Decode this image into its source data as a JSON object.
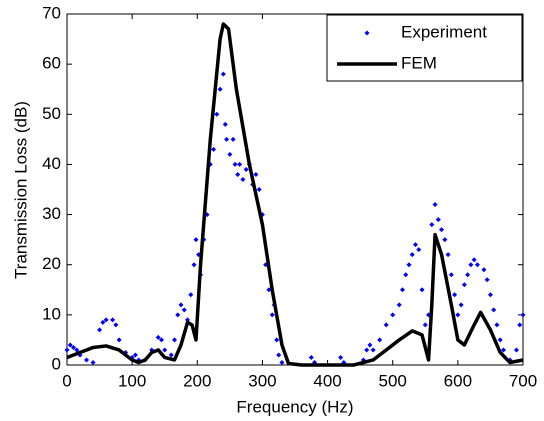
{
  "chart_data": {
    "type": "line",
    "xlabel": "Frequency (Hz)",
    "ylabel": "Transmission Loss (dB)",
    "xlim": [
      0,
      700
    ],
    "ylim": [
      0,
      70
    ],
    "xticks": [
      0,
      100,
      200,
      300,
      400,
      500,
      600,
      700
    ],
    "yticks": [
      0,
      10,
      20,
      30,
      40,
      50,
      60,
      70
    ],
    "legend": "northeast",
    "series": [
      {
        "name": "Experiment",
        "color": "#0000ff",
        "style": "markers",
        "x": [
          0,
          5,
          10,
          15,
          20,
          30,
          40,
          50,
          55,
          60,
          70,
          75,
          80,
          90,
          100,
          105,
          110,
          120,
          130,
          140,
          145,
          150,
          160,
          165,
          170,
          175,
          180,
          185,
          190,
          195,
          198,
          202,
          205,
          210,
          215,
          220,
          225,
          230,
          235,
          240,
          243,
          245,
          250,
          255,
          258,
          262,
          265,
          270,
          275,
          280,
          285,
          290,
          295,
          300,
          305,
          310,
          315,
          318,
          322,
          325,
          330,
          375,
          380,
          420,
          425,
          455,
          460,
          465,
          470,
          480,
          490,
          500,
          510,
          515,
          520,
          525,
          530,
          535,
          540,
          545,
          550,
          555,
          560,
          565,
          570,
          575,
          580,
          585,
          590,
          595,
          600,
          605,
          610,
          615,
          620,
          625,
          630,
          640,
          645,
          650,
          655,
          660,
          665,
          670,
          680,
          690,
          695,
          700
        ],
        "values": [
          3,
          4,
          3.5,
          3,
          2,
          1,
          0.5,
          7,
          8.5,
          9,
          9,
          8,
          5,
          2.5,
          1.5,
          2,
          1,
          1,
          3,
          5.5,
          5,
          3,
          2,
          5,
          10,
          12,
          11,
          9,
          14,
          20,
          25,
          22,
          18,
          25,
          30,
          40,
          43,
          50,
          55,
          58,
          48,
          45,
          42,
          45,
          40,
          38,
          40,
          37,
          39,
          40,
          36,
          38,
          35,
          30,
          20,
          15,
          10,
          12,
          5,
          2,
          0.5,
          1.5,
          0.5,
          1.5,
          0.5,
          1,
          3,
          4,
          3,
          5,
          8,
          10,
          12,
          15,
          18,
          20,
          22,
          24,
          23,
          15,
          8,
          10,
          28,
          32,
          29,
          27,
          25,
          22,
          18,
          14,
          10,
          12,
          16,
          18,
          20,
          21,
          20,
          19,
          17,
          14,
          11,
          8,
          5,
          3,
          1,
          3,
          8,
          10
        ]
      },
      {
        "name": "FEM",
        "color": "#000000",
        "style": "line",
        "x": [
          0,
          20,
          40,
          60,
          80,
          100,
          110,
          120,
          130,
          140,
          150,
          165,
          175,
          185,
          192,
          198,
          205,
          220,
          235,
          240,
          248,
          260,
          280,
          300,
          315,
          330,
          340,
          360,
          400,
          440,
          470,
          490,
          510,
          530,
          545,
          555,
          560,
          565,
          575,
          590,
          600,
          610,
          625,
          635,
          650,
          665,
          680,
          700
        ],
        "values": [
          1.5,
          2.5,
          3.5,
          3.8,
          3,
          1,
          0.5,
          1,
          2.5,
          3,
          1.5,
          1,
          4,
          8.5,
          8,
          5,
          20,
          45,
          65,
          68,
          67,
          55,
          40,
          28,
          15,
          4,
          0.3,
          0,
          0,
          0,
          1,
          3,
          5,
          6.8,
          6,
          1,
          12,
          26,
          22,
          12,
          5,
          4,
          8,
          10.5,
          7,
          2.5,
          0.5,
          1
        ]
      }
    ]
  }
}
